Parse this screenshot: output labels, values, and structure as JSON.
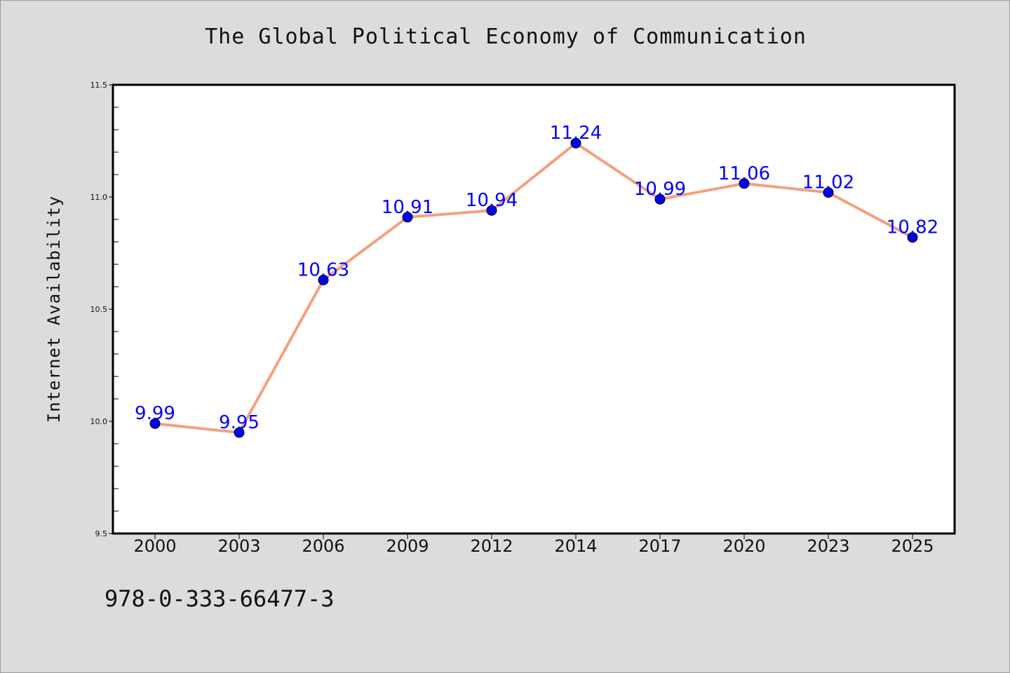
{
  "title": "The Global Political Economy of Communication",
  "footer_code": "978-0-333-66477-3",
  "colors": {
    "line": "#f4a07c",
    "marker": "#0000ee",
    "label": "#0000ff",
    "plot_bg": "#ffffff",
    "page_bg": "#dcdcdc"
  },
  "chart_data": {
    "type": "line",
    "title": "The Global Political Economy of Communication",
    "xlabel": "",
    "ylabel": "Internet Availability",
    "categories": [
      "2000",
      "2003",
      "2006",
      "2009",
      "2012",
      "2014",
      "2017",
      "2020",
      "2023",
      "2025"
    ],
    "series": [
      {
        "values": [
          9.99,
          9.95,
          10.63,
          10.91,
          10.94,
          11.24,
          10.99,
          11.06,
          11.02,
          10.82
        ],
        "labels": [
          "9.99",
          "9.95",
          "10.63",
          "10.91",
          "10.94",
          "11.24",
          "10.99",
          "11.06",
          "11.02",
          "10.82"
        ]
      }
    ],
    "ylim": [
      9.5,
      11.5
    ],
    "yticks": [
      "9.5",
      "10.0",
      "10.5",
      "11.0",
      "11.5"
    ],
    "grid": false,
    "legend": "none"
  }
}
